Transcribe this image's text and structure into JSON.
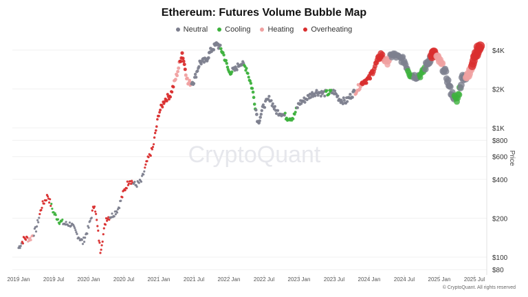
{
  "chart_data": {
    "type": "scatter",
    "title": "Ethereum: Futures Volume Bubble Map",
    "ylabel": "Price",
    "xlabel": "",
    "yscale": "log",
    "ylim": [
      80,
      4800
    ],
    "xlim": [
      "2018-12",
      "2025-09"
    ],
    "grid": true,
    "legend_position": "top-center",
    "legend": [
      {
        "name": "Neutral",
        "color": "#7d7f8e"
      },
      {
        "name": "Cooling",
        "color": "#3db13d"
      },
      {
        "name": "Heating",
        "color": "#f0a1a1"
      },
      {
        "name": "Overheating",
        "color": "#d92e2e"
      }
    ],
    "x_ticks": [
      "2019 Jan",
      "2019 Jul",
      "2020 Jan",
      "2020 Jul",
      "2021 Jan",
      "2021 Jul",
      "2022 Jan",
      "2022 Jul",
      "2023 Jan",
      "2023 Jul",
      "2024 Jan",
      "2024 Jul",
      "2025 Jan",
      "2025 Jul"
    ],
    "y_ticks": [
      {
        "v": 4000,
        "label": "$4K"
      },
      {
        "v": 2000,
        "label": "$2K"
      },
      {
        "v": 1000,
        "label": "$1K"
      },
      {
        "v": 800,
        "label": "$800"
      },
      {
        "v": 600,
        "label": "$600"
      },
      {
        "v": 400,
        "label": "$400"
      },
      {
        "v": 200,
        "label": "$200"
      },
      {
        "v": 100,
        "label": "$100"
      },
      {
        "v": 80,
        "label": "$80"
      }
    ],
    "series_fields": [
      "month_since_2019_jan",
      "price_usd",
      "state",
      "relative_volume"
    ],
    "points": [
      [
        0,
        118,
        "Neutral",
        1
      ],
      [
        1,
        140,
        "Overheating",
        1
      ],
      [
        2,
        138,
        "Heating",
        1
      ],
      [
        3,
        165,
        "Neutral",
        1
      ],
      [
        4,
        250,
        "Overheating",
        1
      ],
      [
        5,
        300,
        "Overheating",
        1
      ],
      [
        6,
        220,
        "Cooling",
        1
      ],
      [
        7,
        190,
        "Cooling",
        1
      ],
      [
        8,
        180,
        "Neutral",
        1
      ],
      [
        9,
        180,
        "Neutral",
        1
      ],
      [
        10,
        150,
        "Neutral",
        1
      ],
      [
        11,
        130,
        "Neutral",
        1
      ],
      [
        12,
        170,
        "Neutral",
        1
      ],
      [
        13,
        260,
        "Overheating",
        1
      ],
      [
        14,
        112,
        "Overheating",
        1
      ],
      [
        15,
        200,
        "Overheating",
        1
      ],
      [
        16,
        210,
        "Neutral",
        1
      ],
      [
        17,
        235,
        "Neutral",
        1
      ],
      [
        18,
        320,
        "Overheating",
        1
      ],
      [
        19,
        400,
        "Overheating",
        1
      ],
      [
        20,
        360,
        "Neutral",
        1
      ],
      [
        21,
        385,
        "Neutral",
        1
      ],
      [
        22,
        550,
        "Overheating",
        1
      ],
      [
        23,
        700,
        "Overheating",
        1
      ],
      [
        24,
        1300,
        "Overheating",
        1.2
      ],
      [
        25,
        1650,
        "Overheating",
        1.3
      ],
      [
        26,
        1800,
        "Overheating",
        1.3
      ],
      [
        27,
        2500,
        "Heating",
        1.5
      ],
      [
        28,
        3800,
        "Overheating",
        1.6
      ],
      [
        29,
        2200,
        "Heating",
        1.5
      ],
      [
        30,
        2300,
        "Neutral",
        1.4
      ],
      [
        31,
        3200,
        "Neutral",
        1.4
      ],
      [
        32,
        3300,
        "Neutral",
        1.5
      ],
      [
        33,
        4000,
        "Neutral",
        1.5
      ],
      [
        34,
        4500,
        "Neutral",
        1.5
      ],
      [
        35,
        3800,
        "Cooling",
        1.4
      ],
      [
        36,
        2700,
        "Cooling",
        1.4
      ],
      [
        37,
        2800,
        "Neutral",
        1.3
      ],
      [
        38,
        3200,
        "Neutral",
        1.3
      ],
      [
        39,
        2900,
        "Cooling",
        1.3
      ],
      [
        40,
        2000,
        "Cooling",
        1.4
      ],
      [
        41,
        1100,
        "Neutral",
        1.5
      ],
      [
        42,
        1500,
        "Neutral",
        1.3
      ],
      [
        43,
        1700,
        "Neutral",
        1.3
      ],
      [
        44,
        1350,
        "Neutral",
        1.3
      ],
      [
        45,
        1300,
        "Neutral",
        1.2
      ],
      [
        46,
        1200,
        "Cooling",
        1.3
      ],
      [
        47,
        1200,
        "Cooling",
        1.2
      ],
      [
        48,
        1550,
        "Neutral",
        1.3
      ],
      [
        49,
        1650,
        "Neutral",
        1.3
      ],
      [
        50,
        1800,
        "Neutral",
        1.3
      ],
      [
        51,
        1900,
        "Neutral",
        1.3
      ],
      [
        52,
        1850,
        "Neutral",
        1.3
      ],
      [
        53,
        1850,
        "Cooling",
        1.3
      ],
      [
        54,
        1900,
        "Neutral",
        1.3
      ],
      [
        55,
        1650,
        "Neutral",
        1.3
      ],
      [
        56,
        1600,
        "Neutral",
        1.3
      ],
      [
        57,
        1800,
        "Neutral",
        1.4
      ],
      [
        58,
        2000,
        "Heating",
        1.5
      ],
      [
        59,
        2300,
        "Overheating",
        1.6
      ],
      [
        60,
        2400,
        "Overheating",
        1.8
      ],
      [
        61,
        3000,
        "Overheating",
        2.2
      ],
      [
        62,
        3700,
        "Overheating",
        2.8
      ],
      [
        63,
        3200,
        "Heating",
        2.6
      ],
      [
        64,
        3700,
        "Neutral",
        2.8
      ],
      [
        65,
        3500,
        "Neutral",
        2.6
      ],
      [
        66,
        3300,
        "Neutral",
        2.8
      ],
      [
        67,
        2600,
        "Cooling",
        2.6
      ],
      [
        68,
        2500,
        "Neutral",
        2.5
      ],
      [
        69,
        2600,
        "Cooling",
        2.6
      ],
      [
        70,
        3200,
        "Neutral",
        3.2
      ],
      [
        71,
        3800,
        "Overheating",
        3.6
      ],
      [
        72,
        3300,
        "Heating",
        3.2
      ],
      [
        73,
        2700,
        "Neutral",
        3.0
      ],
      [
        74,
        1900,
        "Neutral",
        3.0
      ],
      [
        75,
        1600,
        "Cooling",
        2.8
      ],
      [
        76,
        2500,
        "Neutral",
        3.2
      ],
      [
        77,
        2500,
        "Heating",
        3.4
      ],
      [
        78,
        3600,
        "Overheating",
        3.8
      ],
      [
        79,
        4300,
        "Overheating",
        4.2
      ]
    ]
  },
  "watermark": "CryptoQuant",
  "copyright": "© CryptoQuant. All rights reserved"
}
